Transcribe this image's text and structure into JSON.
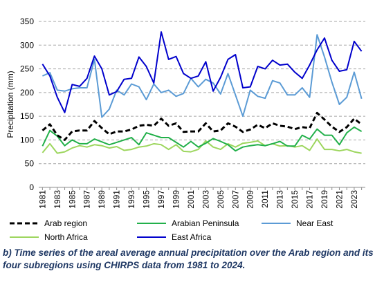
{
  "caption": {
    "label": "b)",
    "text": "Time series of the areal average annual precipitation over the Arab region and its four subregions using CHIRPS data from 1981 to 2024."
  },
  "chart_data": {
    "type": "line",
    "ylabel": "Precipitation (mm)",
    "ylim": [
      0,
      350
    ],
    "yticks": [
      0,
      50,
      100,
      150,
      200,
      250,
      300,
      350
    ],
    "grid": "horizontal dashed",
    "legend_position": "bottom",
    "x": [
      1981,
      1982,
      1983,
      1984,
      1985,
      1986,
      1987,
      1988,
      1989,
      1990,
      1991,
      1992,
      1993,
      1994,
      1995,
      1996,
      1997,
      1998,
      1999,
      2000,
      2001,
      2002,
      2003,
      2004,
      2005,
      2006,
      2007,
      2008,
      2009,
      2010,
      2011,
      2012,
      2013,
      2014,
      2015,
      2016,
      2017,
      2018,
      2019,
      2020,
      2021,
      2022,
      2023,
      2024
    ],
    "xtick_labels": [
      "1981",
      "1983",
      "1985",
      "1987",
      "1989",
      "1991",
      "1993",
      "1995",
      "1997",
      "1999",
      "2001",
      "2003",
      "2005",
      "2007",
      "2009",
      "2011",
      "2013",
      "2015",
      "2017",
      "2019",
      "2021",
      "2023"
    ],
    "series": [
      {
        "name": "Arab region",
        "color": "#000000",
        "style": "dashed",
        "values": [
          120,
          133,
          110,
          100,
          118,
          120,
          120,
          140,
          125,
          112,
          118,
          118,
          122,
          130,
          132,
          130,
          145,
          130,
          135,
          117,
          118,
          118,
          135,
          118,
          120,
          135,
          128,
          117,
          122,
          132,
          125,
          135,
          130,
          128,
          123,
          127,
          125,
          157,
          143,
          128,
          117,
          127,
          145,
          133
        ]
      },
      {
        "name": "Arabian Peninsula",
        "color": "#22b04a",
        "style": "solid",
        "values": [
          87,
          120,
          108,
          88,
          100,
          92,
          92,
          102,
          96,
          90,
          95,
          100,
          105,
          90,
          115,
          110,
          105,
          105,
          95,
          85,
          97,
          85,
          93,
          103,
          97,
          90,
          77,
          85,
          88,
          90,
          88,
          92,
          97,
          87,
          87,
          110,
          102,
          123,
          110,
          110,
          90,
          115,
          127,
          118
        ]
      },
      {
        "name": "Near East",
        "color": "#5b9bd5",
        "style": "solid",
        "values": [
          235,
          242,
          205,
          203,
          208,
          210,
          210,
          270,
          148,
          165,
          205,
          195,
          218,
          212,
          185,
          218,
          200,
          205,
          192,
          198,
          230,
          212,
          228,
          220,
          197,
          240,
          195,
          150,
          205,
          192,
          188,
          225,
          220,
          195,
          195,
          210,
          190,
          322,
          275,
          222,
          175,
          190,
          243,
          187
        ]
      },
      {
        "name": "North Africa",
        "color": "#9dd65e",
        "style": "solid",
        "values": [
          73,
          92,
          72,
          75,
          83,
          88,
          85,
          90,
          88,
          83,
          86,
          78,
          80,
          85,
          87,
          92,
          90,
          80,
          90,
          76,
          75,
          80,
          98,
          85,
          80,
          92,
          85,
          93,
          95,
          98,
          88,
          92,
          87,
          88,
          85,
          88,
          78,
          102,
          80,
          80,
          77,
          80,
          75,
          72
        ]
      },
      {
        "name": "East Africa",
        "color": "#0000cc",
        "style": "solid",
        "values": [
          260,
          235,
          190,
          158,
          217,
          213,
          230,
          277,
          250,
          195,
          202,
          228,
          230,
          275,
          255,
          220,
          328,
          270,
          276,
          240,
          230,
          235,
          265,
          203,
          232,
          270,
          280,
          210,
          212,
          255,
          250,
          268,
          258,
          260,
          243,
          230,
          258,
          290,
          315,
          268,
          245,
          248,
          308,
          287
        ]
      }
    ]
  }
}
